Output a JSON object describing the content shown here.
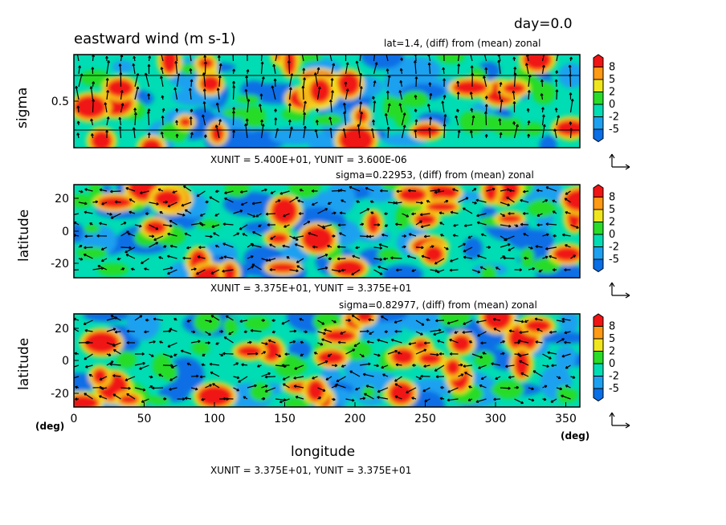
{
  "header": {
    "title": "eastward wind (m s-1)",
    "day": "day=0.0"
  },
  "colors": {
    "levels": [
      "#0a6ee6",
      "#1ea0f0",
      "#00dcb4",
      "#28dc28",
      "#f0e61e",
      "#ff9a14",
      "#f01414"
    ],
    "arrow": "#000000"
  },
  "chart_data": [
    {
      "type": "heatmap",
      "panel": "top",
      "subtitle": "lat=1.4, (diff) from (mean) zonal",
      "ylabel": "sigma",
      "yticks": [
        "0.5"
      ],
      "xunit_label": "XUNIT = 5.400E+01, YUNIT = 3.600E-06",
      "colorbar_ticks": [
        "8",
        "5",
        "2",
        "0",
        "-2",
        "-5"
      ]
    },
    {
      "type": "heatmap",
      "panel": "middle",
      "subtitle": "sigma=0.22953, (diff) from (mean) zonal",
      "ylabel": "latitude",
      "yticks": [
        "20",
        "0",
        "-20"
      ],
      "ylim": [
        -30,
        30
      ],
      "xlim": [
        0,
        360
      ],
      "xunit_label": "XUNIT = 3.375E+01, YUNIT = 3.375E+01",
      "colorbar_ticks": [
        "8",
        "5",
        "2",
        "0",
        "-2",
        "-5"
      ]
    },
    {
      "type": "heatmap",
      "panel": "bottom",
      "subtitle": "sigma=0.82977, (diff) from (mean) zonal",
      "ylabel": "latitude",
      "yticks": [
        "20",
        "0",
        "-20"
      ],
      "ylim": [
        -30,
        30
      ],
      "xlim": [
        0,
        360
      ],
      "xlabel": "longitude",
      "xticks": [
        "0",
        "50",
        "100",
        "150",
        "200",
        "250",
        "300",
        "350"
      ],
      "xunit_label": "XUNIT = 3.375E+01, YUNIT = 3.375E+01",
      "colorbar_ticks": [
        "8",
        "5",
        "2",
        "0",
        "-2",
        "-5"
      ]
    }
  ],
  "axis_units": {
    "y": "(deg)",
    "x": "(deg)"
  }
}
